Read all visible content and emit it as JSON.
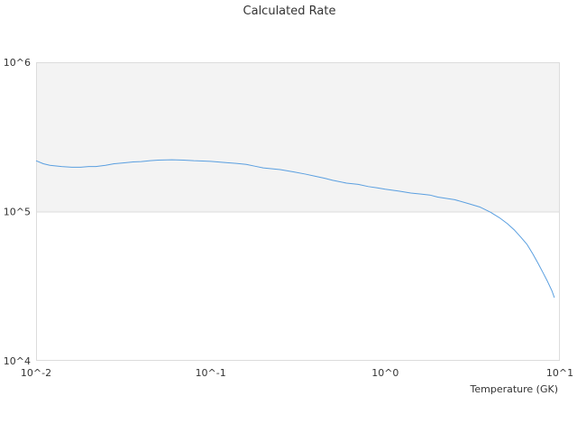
{
  "chart_data": {
    "type": "line",
    "title": "Calculated Rate",
    "xlabel": "Temperature (GK)",
    "ylabel": "",
    "x_scale": "log",
    "y_scale": "log",
    "xlim": [
      0.01,
      10
    ],
    "ylim": [
      10000,
      1000000
    ],
    "x_ticks": [
      {
        "value": 0.01,
        "label": "10^-2"
      },
      {
        "value": 0.1,
        "label": "10^-1"
      },
      {
        "value": 1,
        "label": "10^0"
      },
      {
        "value": 10,
        "label": "10^1"
      }
    ],
    "y_ticks": [
      {
        "value": 10000,
        "label": "10^4"
      },
      {
        "value": 100000,
        "label": "10^5"
      },
      {
        "value": 1000000,
        "label": "10^6"
      }
    ],
    "shaded_band": {
      "y_from": 100000,
      "y_to": 1000000,
      "color": "#f3f3f3"
    },
    "grid": false,
    "series": [
      {
        "color": "#5a9fe0",
        "x": [
          0.01,
          0.011,
          0.012,
          0.014,
          0.016,
          0.018,
          0.02,
          0.022,
          0.025,
          0.028,
          0.032,
          0.036,
          0.04,
          0.045,
          0.05,
          0.06,
          0.07,
          0.08,
          0.09,
          0.1,
          0.12,
          0.14,
          0.16,
          0.18,
          0.2,
          0.25,
          0.3,
          0.35,
          0.4,
          0.45,
          0.5,
          0.6,
          0.7,
          0.8,
          0.9,
          1.0,
          1.2,
          1.4,
          1.6,
          1.8,
          2.0,
          2.5,
          3.0,
          3.5,
          4.0,
          4.5,
          5.0,
          5.5,
          6.0,
          6.5,
          7.0,
          7.5,
          8.0,
          8.5,
          9.0,
          9.3
        ],
        "values": [
          219000,
          209000,
          204000,
          200000,
          198000,
          198000,
          200000,
          200000,
          204000,
          209000,
          212000,
          215000,
          216000,
          219000,
          221000,
          222000,
          221000,
          219000,
          218000,
          217000,
          213000,
          210000,
          207000,
          201000,
          196000,
          191000,
          184000,
          178000,
          172000,
          167000,
          162000,
          155000,
          152000,
          147000,
          144000,
          141000,
          137000,
          133000,
          131000,
          129000,
          125000,
          120000,
          113000,
          107000,
          99000,
          91000,
          83000,
          75000,
          67000,
          60000,
          52000,
          45000,
          39000,
          34000,
          29500,
          26500
        ]
      }
    ]
  }
}
